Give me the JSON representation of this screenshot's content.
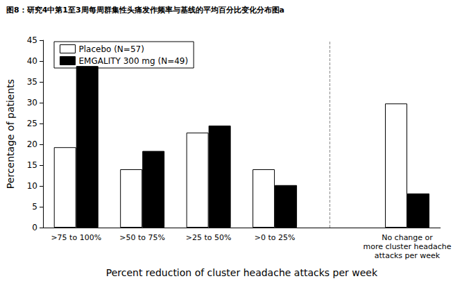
{
  "chart_data": {
    "type": "bar",
    "title": "图8：研究4中第1至3周每周群集性头痛发作频率与基线的平均百分比变化分布图a",
    "x_label": "Percent reduction of cluster headache attacks per week",
    "y_label": "Percentage of patients",
    "categories": [
      ">75 to 100%",
      ">50 to 75%",
      ">25 to 50%",
      ">0 to 25%",
      null,
      "No change or\nmore cluster headache\nattacks per week"
    ],
    "series": [
      {
        "name": "Placebo (N=57)",
        "color": "#ffffff",
        "values": [
          19.3,
          14.0,
          22.8,
          14.0,
          null,
          29.8
        ]
      },
      {
        "name": "EMGALITY 300 mg (N=49)",
        "color": "#000000",
        "values": [
          38.8,
          18.4,
          24.5,
          10.2,
          null,
          8.2
        ]
      }
    ],
    "ylim": [
      0,
      45
    ],
    "yticks": [
      0,
      5,
      10,
      15,
      20,
      25,
      30,
      35,
      40,
      45
    ],
    "grid": false,
    "legend": "upper left"
  }
}
